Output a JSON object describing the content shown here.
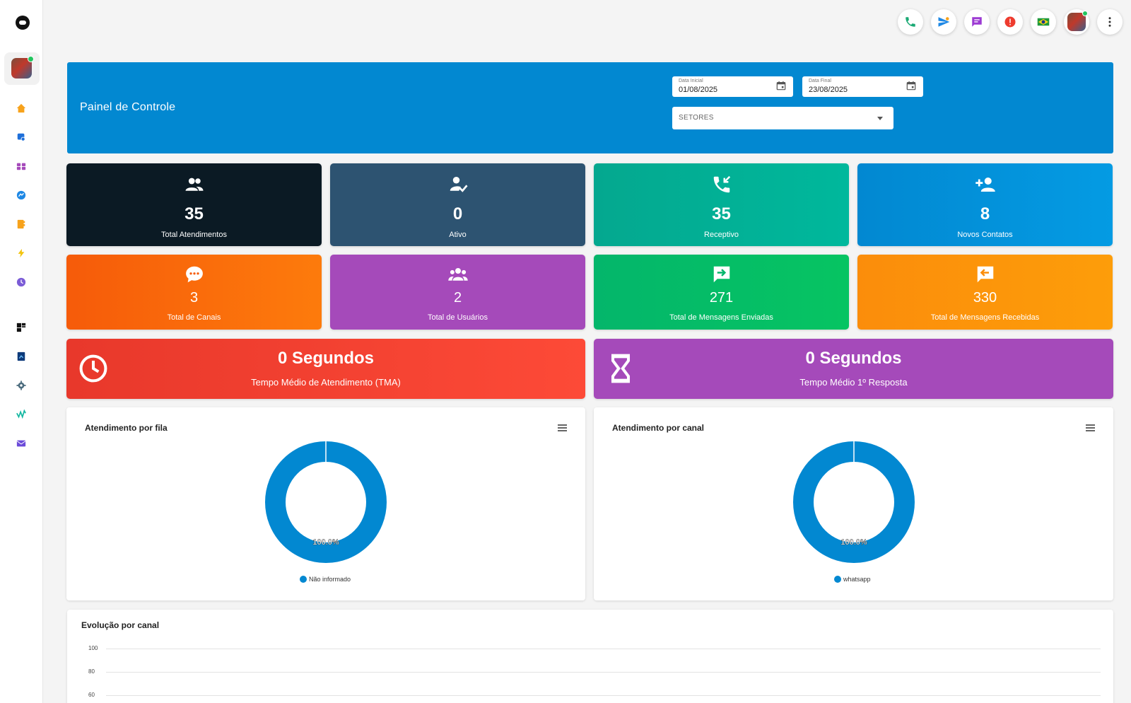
{
  "header": {
    "title": "Painel de Controle",
    "date_start_label": "Data Inicial",
    "date_start_value": "01/08/2025",
    "date_end_label": "Data Final",
    "date_end_value": "23/08/2025",
    "sectors_placeholder": "SETORES"
  },
  "sidebar": {
    "items": [
      "home-icon",
      "chat-search-icon",
      "kanban-icon",
      "messenger-icon",
      "contacts-icon",
      "flash-icon",
      "schedule-icon",
      "dashboard-icon",
      "report-icon",
      "settings-icon",
      "waveform-icon",
      "email-icon"
    ]
  },
  "topbar": {
    "icons": [
      "phone-icon",
      "send-icon",
      "message-icon",
      "alert-icon",
      "brazil-flag-icon",
      "user-avatar",
      "more-vert-icon"
    ]
  },
  "cards": [
    {
      "value": "35",
      "label": "Total Atendimentos",
      "color": "#0b1a24",
      "icon": "group-icon"
    },
    {
      "value": "0",
      "label": "Ativo",
      "color": "#2d5371",
      "icon": "user-check-icon"
    },
    {
      "value": "35",
      "label": "Receptivo",
      "color": "#04a88f",
      "icon": "incoming-call-icon"
    },
    {
      "value": "8",
      "label": "Novos Contatos",
      "color": "#0288d1",
      "icon": "person-add-icon"
    },
    {
      "value": "3",
      "label": "Total de Canais",
      "color": "#f65b0a",
      "icon": "chat-bubble-icon"
    },
    {
      "value": "2",
      "label": "Total de Usuários",
      "color": "#a54aba",
      "icon": "users-group-icon"
    },
    {
      "value": "271",
      "label": "Total de Mensagens Enviadas",
      "color": "#04b66b",
      "icon": "message-forward-icon"
    },
    {
      "value": "330",
      "label": "Total de Mensagens Recebidas",
      "color": "#fb8d0b",
      "icon": "message-reply-icon"
    }
  ],
  "tma": {
    "value": "0 Segundos",
    "label": "Tempo Médio de Atendimento (TMA)",
    "color": "#ee3b2e"
  },
  "first_response": {
    "value": "0 Segundos",
    "label": "Tempo Médio 1º Resposta",
    "color": "#a54aba"
  },
  "chart_data": [
    {
      "type": "pie",
      "title": "Atendimento por fila",
      "categories": [
        "Não informado"
      ],
      "values": [
        100.0
      ],
      "data_labels": [
        "100.0%"
      ],
      "colors": [
        "#0288d1"
      ],
      "legend": "bottom"
    },
    {
      "type": "pie",
      "title": "Atendimento por canal",
      "categories": [
        "whatsapp"
      ],
      "values": [
        100.0
      ],
      "data_labels": [
        "100.0%"
      ],
      "colors": [
        "#0288d1"
      ],
      "legend": "bottom"
    },
    {
      "type": "line",
      "title": "Evolução por canal",
      "y_ticks": [
        "100",
        "80",
        "60"
      ],
      "ylim": [
        60,
        100
      ],
      "grid": true
    }
  ]
}
